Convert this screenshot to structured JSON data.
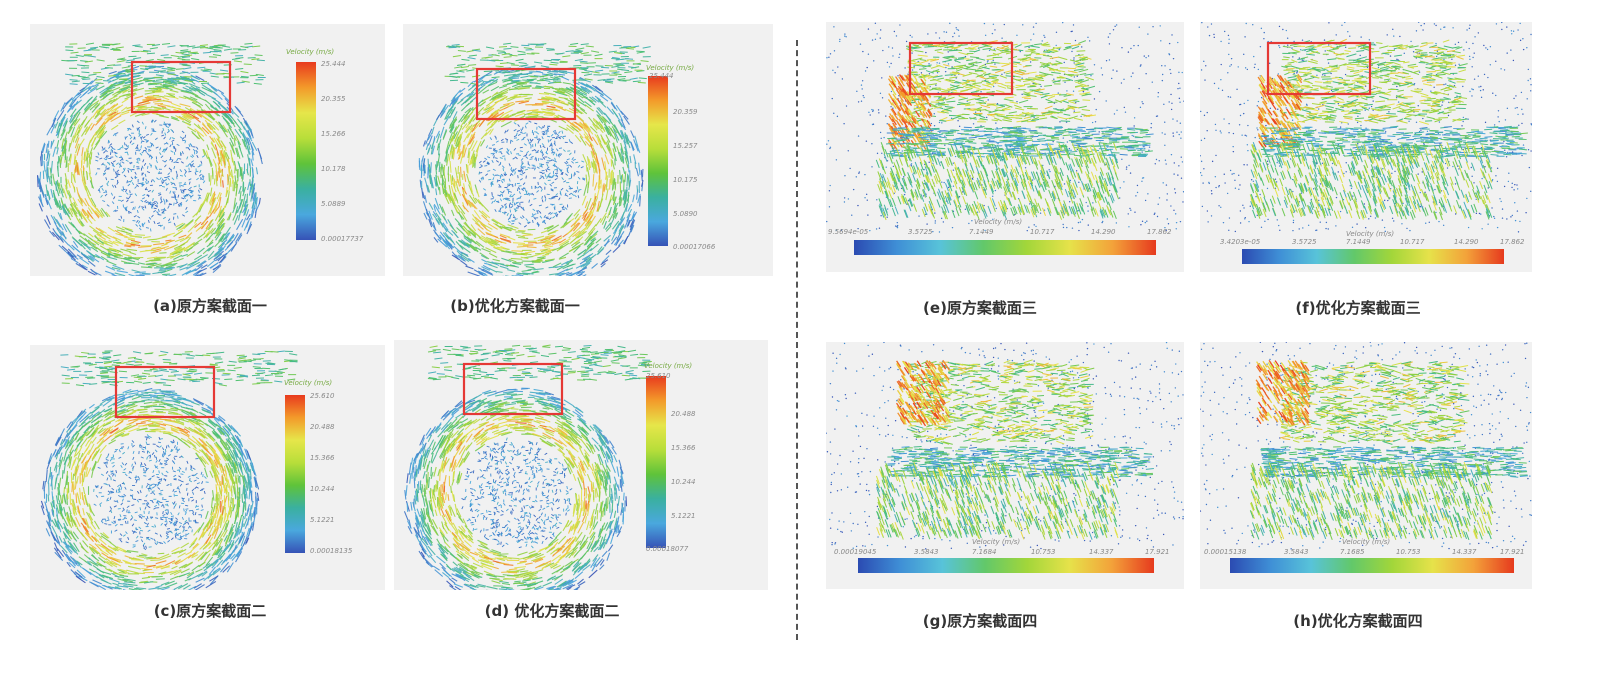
{
  "legend_colors": {
    "vertical": [
      "#e83a1e",
      "#f39a2a",
      "#e6e64a",
      "#b8de3a",
      "#5fc33a",
      "#3ab0a0",
      "#4aa8de",
      "#3652b6"
    ],
    "horizontal": [
      "#2b4bb2",
      "#3f8fd6",
      "#58c3d9",
      "#62c86a",
      "#a2d63a",
      "#e6e24a",
      "#f3a23a",
      "#e63a1e"
    ],
    "highlight": "#e53935"
  },
  "panels": [
    {
      "id": "a",
      "caption": "(a)原方案截面一",
      "legend_title": "Velocity (m/s)",
      "ticks": [
        "25.444",
        "20.355",
        "15.266",
        "10.178",
        "5.0889",
        "0.00017737"
      ]
    },
    {
      "id": "b",
      "caption": "(b)优化方案截面一",
      "legend_title": "Velocity (m/s)",
      "ticks": [
        "25.444",
        "20.359",
        "15.257",
        "10.175",
        "5.0890",
        "0.00017066"
      ]
    },
    {
      "id": "c",
      "caption": "(c)原方案截面二",
      "legend_title": "Velocity (m/s)",
      "ticks": [
        "25.610",
        "20.488",
        "15.366",
        "10.244",
        "5.1221",
        "0.00018135"
      ]
    },
    {
      "id": "d",
      "caption": "(d)  优化方案截面二",
      "legend_title": "Velocity (m/s)",
      "ticks": [
        "25.610",
        "20.488",
        "15.366",
        "10.244",
        "5.1221",
        "0.00018077"
      ]
    },
    {
      "id": "e",
      "caption": "(e)原方案截面三",
      "legend_title": "Velocity (m/s)",
      "ticks": [
        "9.5694e-05",
        "3.5725",
        "7.1449",
        "10.717",
        "14.290",
        "17.862"
      ]
    },
    {
      "id": "f",
      "caption": "(f)优化方案截面三",
      "legend_title": "Velocity (m/s)",
      "ticks": [
        "3.4203e-05",
        "3.5725",
        "7.1449",
        "10.717",
        "14.290",
        "17.862"
      ]
    },
    {
      "id": "g",
      "caption": "(g)原方案截面四",
      "legend_title": "Velocity (m/s)",
      "ticks": [
        "0.00019045",
        "3.5843",
        "7.1684",
        "10.753",
        "14.337",
        "17.921"
      ]
    },
    {
      "id": "h",
      "caption": "(h)优化方案截面四",
      "legend_title": "Velocity (m/s)",
      "ticks": [
        "0.00015138",
        "3.5843",
        "7.1685",
        "10.753",
        "14.337",
        "17.921"
      ]
    }
  ]
}
